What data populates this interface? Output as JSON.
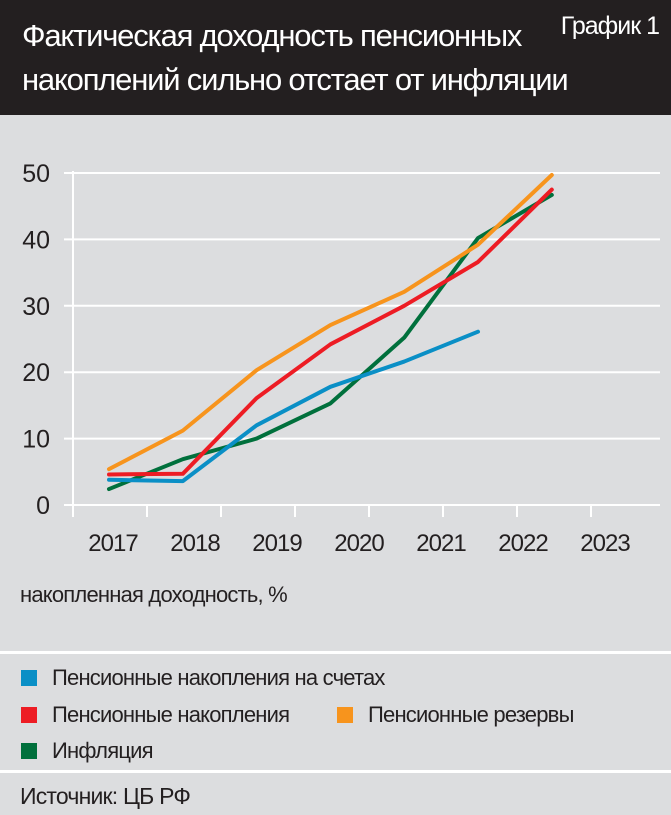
{
  "header": {
    "title": "Фактическая доходность пенсионных накоплений сильно отстает от инфляции",
    "figure_label": "График 1"
  },
  "chart_data": {
    "type": "line",
    "title": "Фактическая доходность пенсионных накоплений сильно отстает от инфляции",
    "ylabel": "накопленная доходность, %",
    "xlabel": "",
    "categories": [
      "2017",
      "2018",
      "2019",
      "2020",
      "2021",
      "2022",
      "2023"
    ],
    "y_ticks": [
      0,
      10,
      20,
      30,
      40,
      50
    ],
    "ylim": [
      0,
      50
    ],
    "grid": true,
    "legend_placement": "bottom",
    "series": [
      {
        "name": "Пенсионные накопления на счетах",
        "color": "#0a8fc6",
        "values": [
          3.8,
          3.6,
          12.0,
          17.8,
          21.6,
          26.1,
          null
        ]
      },
      {
        "name": "Пенсионные накопления",
        "color": "#ed1c24",
        "values": [
          4.6,
          4.7,
          16.1,
          24.2,
          30.0,
          36.6,
          47.5
        ]
      },
      {
        "name": "Пенсионные резервы",
        "color": "#f7941d",
        "values": [
          5.4,
          11.2,
          20.3,
          27.1,
          32.1,
          39.2,
          49.7
        ]
      },
      {
        "name": "Инфляция",
        "color": "#00703c",
        "values": [
          2.4,
          6.9,
          10.0,
          15.3,
          25.2,
          40.2,
          46.7
        ]
      }
    ]
  },
  "source": "Источник: ЦБ РФ"
}
